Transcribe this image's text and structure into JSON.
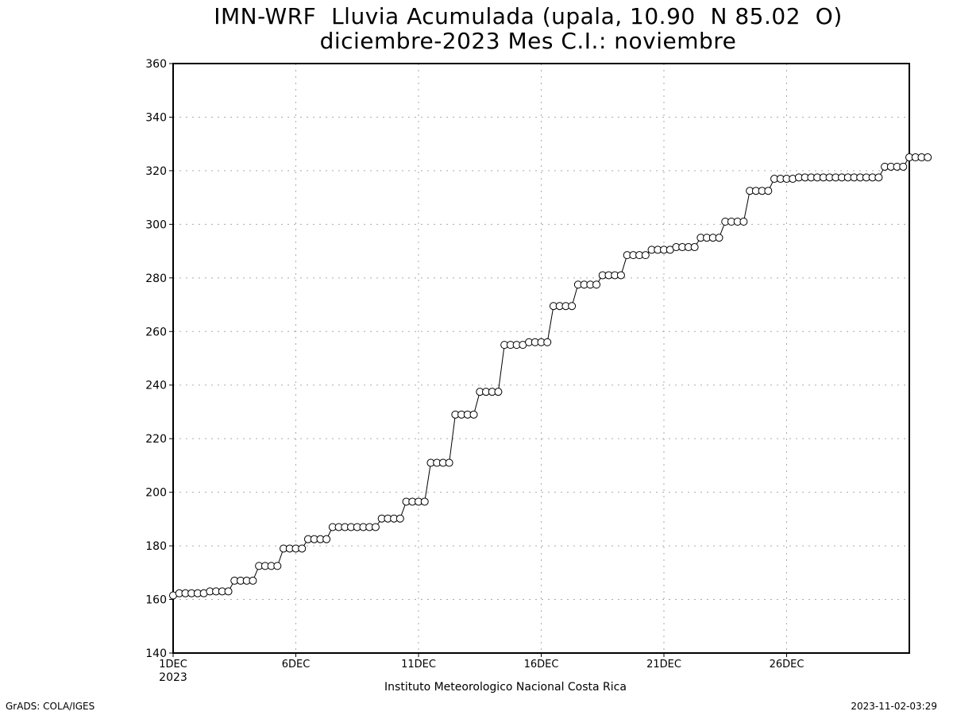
{
  "title": {
    "line1": "IMN-WRF  Lluvia Acumulada (upala, 10.90  N 85.02  O)",
    "line2": "diciembre-2023 Mes C.I.: noviembre"
  },
  "footer": {
    "credit": "GrADS: COLA/IGES",
    "timestamp": "2023-11-02-03:29"
  },
  "chart_data": {
    "type": "line",
    "title": "IMN-WRF  Lluvia Acumulada (upala, 10.90  N 85.02  O)",
    "subtitle": "diciembre-2023 Mes C.I.: noviembre",
    "xlabel": "Instituto Meteorologico Nacional Costa Rica",
    "ylabel": "",
    "x_unit": "day of December 2023 (6-hourly steps)",
    "xlim": [
      1,
      31
    ],
    "ylim": [
      140,
      360
    ],
    "yticks": [
      140,
      160,
      180,
      200,
      220,
      240,
      260,
      280,
      300,
      320,
      340,
      360
    ],
    "xticks": [
      {
        "day": 1,
        "label": "1DEC",
        "sublabel": "2023"
      },
      {
        "day": 6,
        "label": "6DEC",
        "sublabel": ""
      },
      {
        "day": 11,
        "label": "11DEC",
        "sublabel": ""
      },
      {
        "day": 16,
        "label": "16DEC",
        "sublabel": ""
      },
      {
        "day": 21,
        "label": "21DEC",
        "sublabel": ""
      },
      {
        "day": 26,
        "label": "26DEC",
        "sublabel": ""
      }
    ],
    "grid": true,
    "marker": "open-circle",
    "line_color": "#000000",
    "series": [
      {
        "values": [
          161.5,
          162.3,
          162.3,
          162.3,
          162.3,
          162.3,
          163.0,
          163.0,
          163.0,
          163.0,
          167.0,
          167.0,
          167.0,
          167.0,
          172.5,
          172.5,
          172.5,
          172.5,
          179.0,
          179.0,
          179.0,
          179.0,
          182.5,
          182.5,
          182.5,
          182.5,
          187.0,
          187.0,
          187.0,
          187.0,
          187.0,
          187.0,
          187.0,
          187.0,
          190.2,
          190.2,
          190.2,
          190.2,
          196.5,
          196.5,
          196.5,
          196.5,
          211.0,
          211.0,
          211.0,
          211.0,
          229.0,
          229.0,
          229.0,
          229.0,
          237.5,
          237.5,
          237.5,
          237.5,
          255.0,
          255.0,
          255.0,
          255.0,
          256.0,
          256.0,
          256.0,
          256.0,
          269.5,
          269.5,
          269.5,
          269.5,
          277.5,
          277.5,
          277.5,
          277.5,
          281.0,
          281.0,
          281.0,
          281.0,
          288.5,
          288.5,
          288.5,
          288.5,
          290.5,
          290.5,
          290.5,
          290.5,
          291.5,
          291.5,
          291.5,
          291.5,
          295.0,
          295.0,
          295.0,
          295.0,
          301.0,
          301.0,
          301.0,
          301.0,
          312.5,
          312.5,
          312.5,
          312.5,
          317.0,
          317.0,
          317.0,
          317.0,
          317.5,
          317.5,
          317.5,
          317.5,
          317.5,
          317.5,
          317.5,
          317.5,
          317.5,
          317.5,
          317.5,
          317.5,
          317.5,
          317.5,
          321.5,
          321.5,
          321.5,
          321.5,
          325.0,
          325.0,
          325.0,
          325.0
        ]
      }
    ]
  }
}
